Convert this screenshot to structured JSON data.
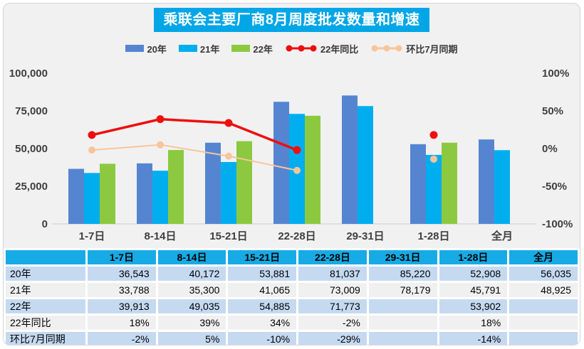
{
  "title": "乘联会主要厂商8月周度批发数量和增速",
  "colors": {
    "title_bg": "#00A6E6",
    "header_bg": "#16ABE5",
    "card_bg": "#F1F1F2",
    "row_blue": "#C5D9F1",
    "row_gray": "#F0F0F0",
    "bar_20": "#5585D0",
    "bar_21": "#00AEEF",
    "bar_22": "#8CC940",
    "line_yoy": "#EE0E0E",
    "line_mom": "#F8C59B",
    "axis_text": "#3F3F3F",
    "baseline": "#D9D9D9"
  },
  "legend": [
    {
      "label": "20年",
      "type": "bar",
      "color": "#5585D0"
    },
    {
      "label": "21年",
      "type": "bar",
      "color": "#00AEEF"
    },
    {
      "label": "22年",
      "type": "bar",
      "color": "#8CC940"
    },
    {
      "label": "22年同比",
      "type": "line",
      "color": "#EE0E0E"
    },
    {
      "label": "环比7月同期",
      "type": "line",
      "color": "#F8C59B"
    }
  ],
  "chart_data": {
    "type": "bar+line combo, dual axis",
    "title": "乘联会主要厂商8月周度批发数量和增速",
    "categories": [
      "1-7日",
      "8-14日",
      "15-21日",
      "22-28日",
      "29-31日",
      "1-28日",
      "全月"
    ],
    "series": [
      {
        "name": "20年",
        "type": "bar",
        "axis": "left",
        "color": "#5585D0",
        "values": [
          36543,
          40172,
          53881,
          81037,
          85220,
          52908,
          56035
        ]
      },
      {
        "name": "21年",
        "type": "bar",
        "axis": "left",
        "color": "#00AEEF",
        "values": [
          33788,
          35300,
          41065,
          73009,
          78179,
          45791,
          48925
        ]
      },
      {
        "name": "22年",
        "type": "bar",
        "axis": "left",
        "color": "#8CC940",
        "values": [
          39913,
          49035,
          54885,
          71773,
          null,
          53902,
          null
        ]
      },
      {
        "name": "22年同比",
        "type": "line",
        "axis": "right",
        "color": "#EE0E0E",
        "values": [
          18,
          39,
          34,
          -2,
          null,
          18,
          null
        ]
      },
      {
        "name": "环比7月同期",
        "type": "line",
        "axis": "right",
        "color": "#F8C59B",
        "values": [
          -2,
          5,
          -10,
          -29,
          null,
          -14,
          null
        ]
      }
    ],
    "left_axis": {
      "min": 0,
      "max": 100000,
      "ticks": [
        "100,000",
        "75,000",
        "50,000",
        "25,000",
        "0"
      ],
      "tick_values": [
        100000,
        75000,
        50000,
        25000,
        0
      ]
    },
    "right_axis": {
      "min": -100,
      "max": 100,
      "ticks": [
        "100%",
        "50%",
        "0%",
        "-50%",
        "-100%"
      ],
      "tick_values": [
        100,
        50,
        0,
        -50,
        -100
      ]
    },
    "grid": "off",
    "legend_position": "top"
  },
  "table": {
    "header": [
      "",
      "1-7日",
      "8-14日",
      "15-21日",
      "22-28日",
      "29-31日",
      "1-28日",
      "全月"
    ],
    "rows": [
      {
        "label": "20年",
        "values": [
          "36,543",
          "40,172",
          "53,881",
          "81,037",
          "85,220",
          "52,908",
          "56,035"
        ]
      },
      {
        "label": "21年",
        "values": [
          "33,788",
          "35,300",
          "41,065",
          "73,009",
          "78,179",
          "45,791",
          "48,925"
        ]
      },
      {
        "label": "22年",
        "values": [
          "39,913",
          "49,035",
          "54,885",
          "71,773",
          "",
          "53,902",
          ""
        ]
      },
      {
        "label": "22年同比",
        "values": [
          "18%",
          "39%",
          "34%",
          "-2%",
          "",
          "18%",
          ""
        ]
      },
      {
        "label": "环比7月同期",
        "values": [
          "-2%",
          "5%",
          "-10%",
          "-29%",
          "",
          "-14%",
          ""
        ]
      }
    ]
  }
}
